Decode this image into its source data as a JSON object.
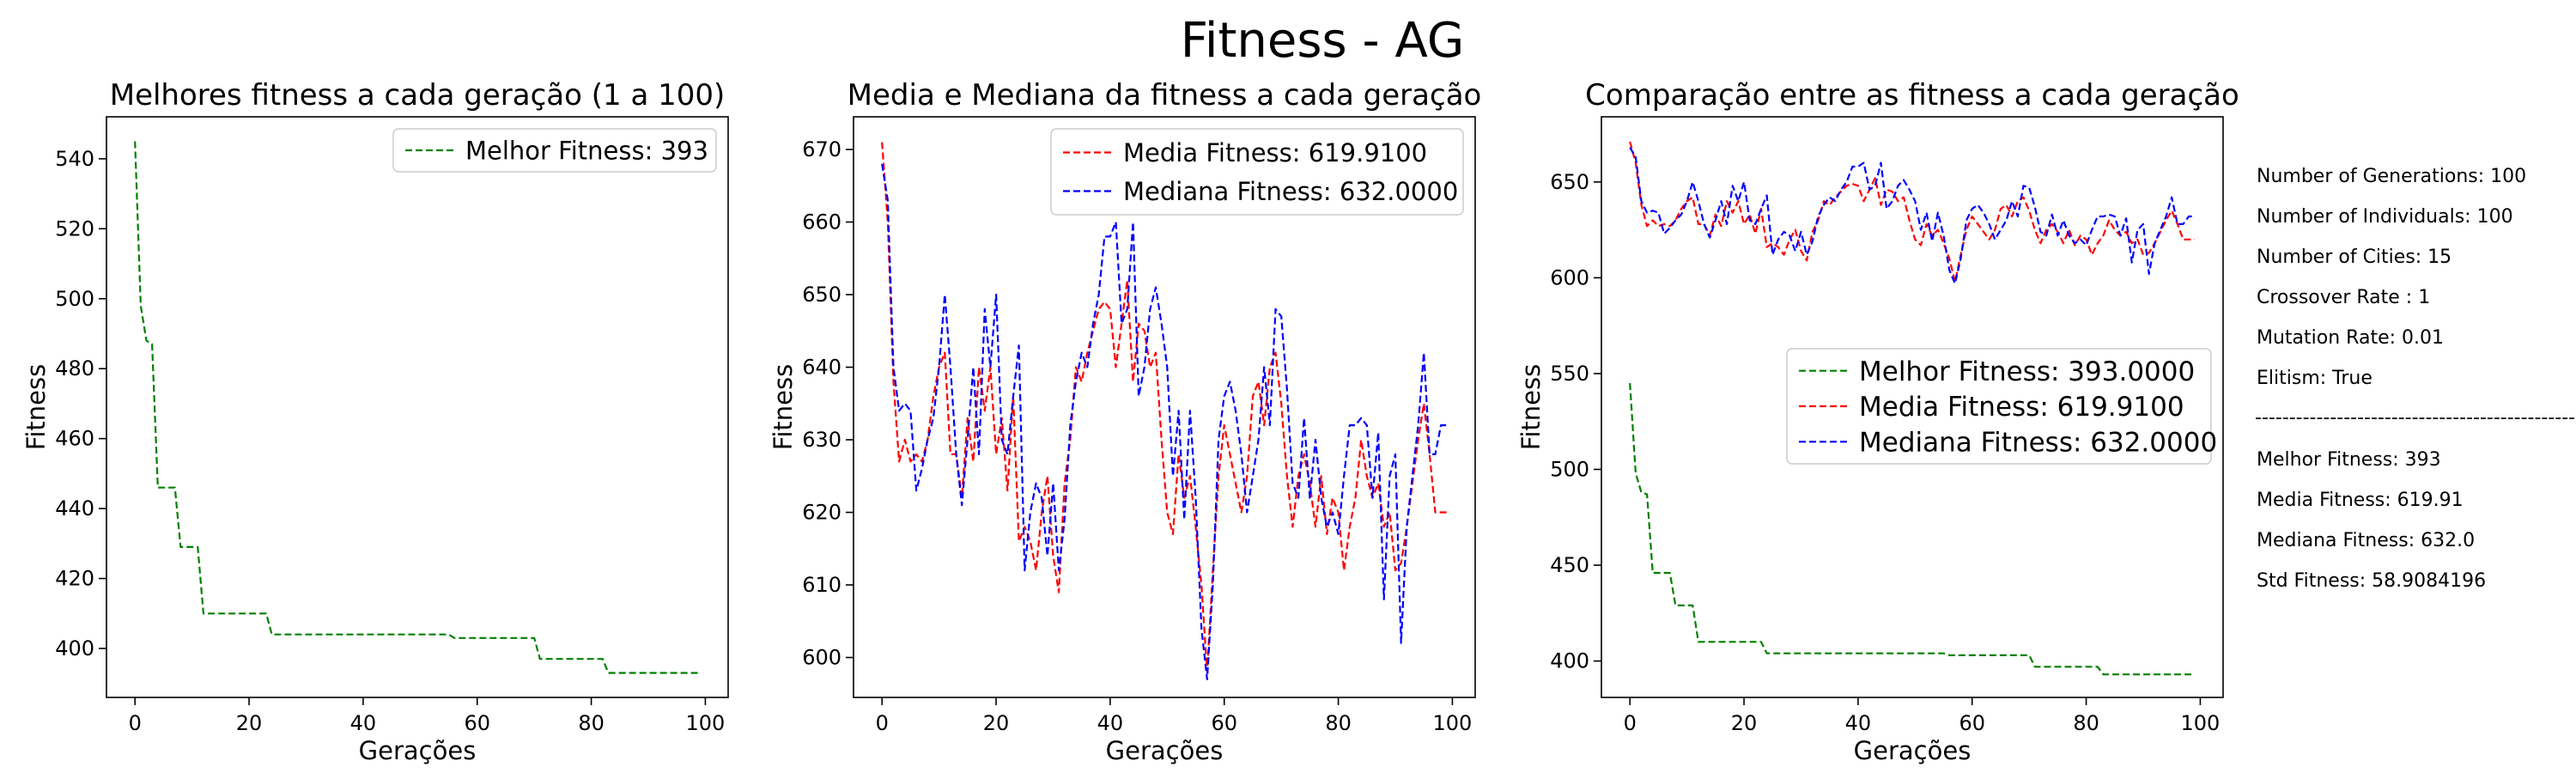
{
  "figure": {
    "suptitle": "Fitness - AG",
    "colors": {
      "best": "#008000",
      "mean": "#ff0000",
      "median": "#0000ff"
    }
  },
  "chart_data": [
    {
      "type": "line",
      "title": "Melhores fitness a cada geração (1 a 100)",
      "xlabel": "Gerações",
      "ylabel": "Fitness",
      "xlim": [
        -5,
        104
      ],
      "ylim": [
        386,
        552
      ],
      "xticks": [
        0,
        20,
        40,
        60,
        80,
        100
      ],
      "yticks": [
        400,
        420,
        440,
        460,
        480,
        500,
        520,
        540
      ],
      "grid": false,
      "legend_position": "top-right",
      "series": [
        {
          "name": "Melhor Fitness: 393",
          "color": "#008000",
          "dash": "dashed",
          "steps": [
            [
              0,
              545
            ],
            [
              1,
              498
            ],
            [
              2,
              488
            ],
            [
              3,
              487
            ],
            [
              4,
              446
            ],
            [
              8,
              429
            ],
            [
              12,
              410
            ],
            [
              24,
              404
            ],
            [
              56,
              403
            ],
            [
              71,
              397
            ],
            [
              83,
              393
            ],
            [
              99,
              393
            ]
          ]
        }
      ]
    },
    {
      "type": "line",
      "title": "Media e Mediana da fitness a cada geração",
      "xlabel": "Gerações",
      "ylabel": "Fitness",
      "xlim": [
        -5,
        104
      ],
      "ylim": [
        594.5,
        674.5
      ],
      "xticks": [
        0,
        20,
        40,
        60,
        80,
        100
      ],
      "yticks": [
        600,
        610,
        620,
        630,
        640,
        650,
        660,
        670
      ],
      "grid": false,
      "legend_position": "top-right",
      "series": [
        {
          "name": "Media Fitness: 619.9100",
          "color": "#ff0000",
          "dash": "dashed",
          "values": [
            671,
            660,
            638,
            627,
            630,
            627,
            628,
            627,
            630,
            636,
            640,
            642,
            628,
            628,
            622,
            633,
            627,
            640,
            634,
            640,
            628,
            633,
            623,
            636,
            616,
            618,
            616,
            612,
            620,
            625,
            614,
            609,
            624,
            630,
            640,
            638,
            642,
            645,
            648,
            649,
            648,
            640,
            646,
            652,
            638,
            646,
            645,
            640,
            642,
            630,
            620,
            617,
            628,
            622,
            625,
            618,
            610,
            598,
            612,
            625,
            632,
            628,
            624,
            620,
            625,
            636,
            638,
            632,
            640,
            642,
            635,
            625,
            618,
            625,
            628,
            624,
            618,
            625,
            617,
            622,
            620,
            612,
            618,
            622,
            630,
            625,
            622,
            624,
            618,
            620,
            612,
            613,
            618,
            624,
            630,
            635,
            628,
            620,
            620,
            620
          ]
        },
        {
          "name": "Mediana Fitness: 632.0000",
          "color": "#0000ff",
          "dash": "dashed",
          "values": [
            668,
            663,
            640,
            634,
            635,
            634,
            623,
            626,
            630,
            633,
            640,
            650,
            640,
            628,
            621,
            630,
            640,
            628,
            648,
            640,
            650,
            630,
            628,
            636,
            643,
            612,
            620,
            624,
            622,
            614,
            624,
            612,
            619,
            632,
            638,
            642,
            640,
            646,
            650,
            658,
            658,
            660,
            646,
            648,
            660,
            636,
            640,
            648,
            651,
            646,
            640,
            625,
            634,
            619,
            634,
            622,
            604,
            597,
            610,
            630,
            636,
            638,
            634,
            628,
            620,
            625,
            630,
            640,
            632,
            648,
            647,
            637,
            624,
            622,
            633,
            622,
            630,
            622,
            618,
            620,
            617,
            625,
            632,
            632,
            633,
            632,
            622,
            631,
            608,
            625,
            628,
            602,
            618,
            625,
            632,
            642,
            628,
            628,
            632,
            632
          ]
        }
      ]
    },
    {
      "type": "line",
      "title": "Comparação entre as fitness a cada geração",
      "xlabel": "Gerações",
      "ylabel": "Fitness",
      "xlim": [
        -5,
        104
      ],
      "ylim": [
        381,
        684
      ],
      "xticks": [
        0,
        20,
        40,
        60,
        80,
        100
      ],
      "yticks": [
        400,
        450,
        500,
        550,
        600,
        650
      ],
      "grid": false,
      "legend_position": "center-right",
      "series": [
        {
          "name": "Melhor Fitness: 393.0000",
          "color": "#008000",
          "dash": "dashed",
          "ref": "0.0"
        },
        {
          "name": "Media Fitness: 619.9100",
          "color": "#ff0000",
          "dash": "dashed",
          "ref": "1.0"
        },
        {
          "name": "Mediana Fitness: 632.0000",
          "color": "#0000ff",
          "dash": "dashed",
          "ref": "1.1"
        }
      ]
    }
  ],
  "info_panel": {
    "params": [
      "Number of Generations: 100",
      "Number of Individuals: 100",
      "Number of Cities: 15",
      "Crossover Rate : 1",
      "Mutation Rate: 0.01",
      "Elitism: True"
    ],
    "separator": "--------------------------------------------------------------",
    "stats": [
      "Melhor Fitness: 393",
      "Media Fitness: 619.91",
      "Mediana Fitness: 632.0",
      "Std Fitness: 58.9084196"
    ]
  }
}
